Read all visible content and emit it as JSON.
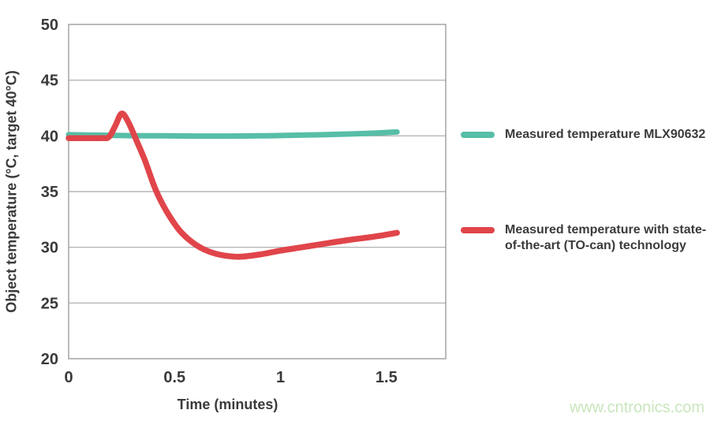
{
  "page": {
    "background": "#ffffff"
  },
  "chart_data": {
    "type": "line",
    "title": "",
    "xlabel": "Time (minutes)",
    "ylabel": "Object temperature (°C, target 40°C)",
    "x_range": [
      0,
      1.78
    ],
    "y_range": [
      20,
      50
    ],
    "x_ticks": {
      "values": [
        0,
        0.5,
        1,
        1.5
      ],
      "labels": [
        "0",
        "0.5",
        "1",
        "1.5"
      ]
    },
    "y_ticks": {
      "values": [
        20,
        25,
        30,
        35,
        40,
        45,
        50
      ],
      "labels": [
        "20",
        "25",
        "30",
        "35",
        "40",
        "45",
        "50"
      ]
    },
    "grid": "horizontal gridlines at every 5 °C, full border around plot",
    "legend_position": "right",
    "series": [
      {
        "name": "Measured temperature MLX90632",
        "color": "#57bea7",
        "stroke_width": 7,
        "points": [
          [
            0,
            40.1
          ],
          [
            0.15,
            40.06
          ],
          [
            0.3,
            40.02
          ],
          [
            0.45,
            40.0
          ],
          [
            0.6,
            39.98
          ],
          [
            0.75,
            39.98
          ],
          [
            0.9,
            40.0
          ],
          [
            1.05,
            40.05
          ],
          [
            1.2,
            40.1
          ],
          [
            1.35,
            40.18
          ],
          [
            1.45,
            40.25
          ],
          [
            1.55,
            40.35
          ]
        ]
      },
      {
        "name": "Measured temperature with state-of-the-art (TO-can) technology",
        "color": "#e0454a",
        "stroke_width": 7.5,
        "points": [
          [
            0,
            39.8
          ],
          [
            0.15,
            39.8
          ],
          [
            0.19,
            39.9
          ],
          [
            0.22,
            40.9
          ],
          [
            0.25,
            42.0
          ],
          [
            0.28,
            41.3
          ],
          [
            0.32,
            39.6
          ],
          [
            0.36,
            37.8
          ],
          [
            0.41,
            35.2
          ],
          [
            0.46,
            33.3
          ],
          [
            0.52,
            31.6
          ],
          [
            0.58,
            30.5
          ],
          [
            0.64,
            29.8
          ],
          [
            0.71,
            29.35
          ],
          [
            0.8,
            29.15
          ],
          [
            0.9,
            29.35
          ],
          [
            1.0,
            29.7
          ],
          [
            1.1,
            30.0
          ],
          [
            1.2,
            30.3
          ],
          [
            1.32,
            30.65
          ],
          [
            1.44,
            30.95
          ],
          [
            1.55,
            31.3
          ]
        ]
      }
    ]
  },
  "legend": {
    "items": [
      {
        "color": "#57bea7",
        "lines": [
          "Measured temperature MLX90632"
        ]
      },
      {
        "color": "#e0454a",
        "lines": [
          "Measured temperature with state-",
          "of-the-art (TO-can) technology"
        ]
      }
    ]
  },
  "watermark": {
    "text": "www.cntronics.com",
    "color": "#c9e6bc"
  },
  "colors": {
    "grid": "#a8a8a8",
    "plot_border": "#9e9e9e",
    "axis_text": "#3a3a3a",
    "background": "#ffffff"
  }
}
